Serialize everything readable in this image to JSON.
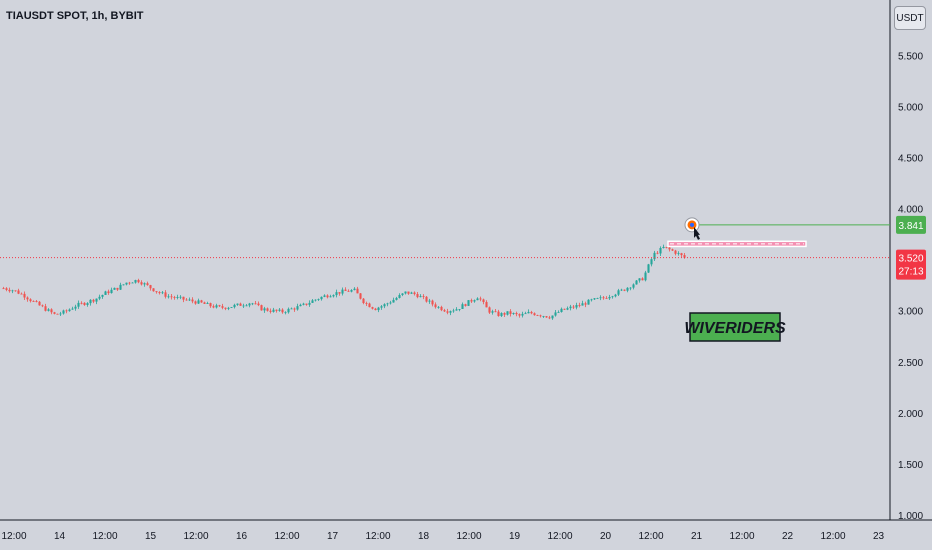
{
  "chart_data": {
    "type": "candlestick",
    "title": "TIAUSDT SPOT, 1h, BYBIT",
    "currency": "USDT",
    "y_ticks": [
      "5.500",
      "5.000",
      "4.500",
      "4.000",
      "3.500",
      "3.000",
      "2.500",
      "2.000",
      "1.500",
      "1.000"
    ],
    "y_tick_values": [
      5.5,
      5.0,
      4.5,
      4.0,
      3.5,
      3.0,
      2.5,
      2.0,
      1.5,
      1.0
    ],
    "ylim": [
      0.95,
      5.75
    ],
    "x_ticks": [
      "12:00",
      "14",
      "12:00",
      "15",
      "12:00",
      "16",
      "12:00",
      "17",
      "12:00",
      "18",
      "12:00",
      "19",
      "12:00",
      "20",
      "12:00",
      "21",
      "12:00",
      "22",
      "12:00",
      "23"
    ],
    "price_path": [
      3.22,
      3.2,
      3.15,
      3.08,
      3.02,
      2.96,
      2.99,
      3.05,
      3.08,
      3.12,
      3.18,
      3.22,
      3.28,
      3.3,
      3.24,
      3.18,
      3.14,
      3.12,
      3.1,
      3.08,
      3.05,
      3.03,
      3.04,
      3.06,
      3.08,
      3.02,
      3.0,
      2.99,
      3.02,
      3.05,
      3.1,
      3.14,
      3.17,
      3.19,
      3.2,
      3.08,
      3.02,
      3.06,
      3.12,
      3.18,
      3.16,
      3.1,
      3.04,
      3.0,
      3.02,
      3.08,
      3.14,
      3.0,
      2.96,
      2.98,
      2.95,
      2.98,
      2.96,
      2.94,
      3.0,
      3.03,
      3.06,
      3.1,
      3.12,
      3.16,
      3.2,
      3.26,
      3.32,
      3.55,
      3.62,
      3.58,
      3.52
    ],
    "levels": {
      "target": {
        "value": 3.841,
        "label": "3.841",
        "color": "#4caf50"
      },
      "current": {
        "value": 3.52,
        "label": "3.520",
        "countdown": "27:13",
        "color": "#f23645"
      }
    },
    "resistance_zone": [
      3.63,
      3.68
    ],
    "annotation": "WIVERIDERS",
    "colors": {
      "up": "#26a69a",
      "down": "#ef5350",
      "background": "#d1d4dc",
      "target_line": "#4caf50"
    }
  }
}
